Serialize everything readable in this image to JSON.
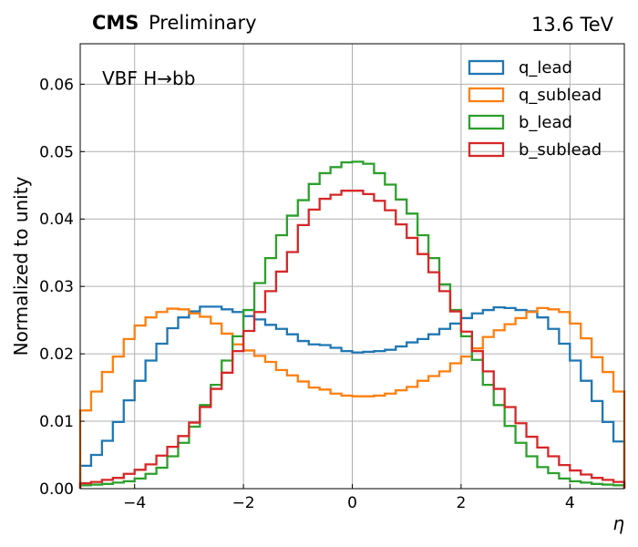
{
  "header": {
    "experiment": "CMS",
    "status": "Preliminary",
    "energy": "13.6 TeV"
  },
  "chart_data": {
    "type": "line",
    "step": true,
    "annotation": "VBF H→bb",
    "xlabel": "η",
    "ylabel": "Normalized to unity",
    "xlim": [
      -5,
      5
    ],
    "ylim": [
      0,
      0.066
    ],
    "x_ticks": [
      -4,
      -2,
      0,
      2,
      4
    ],
    "x_tick_labels": [
      "−4",
      "−2",
      "0",
      "2",
      "4"
    ],
    "y_ticks": [
      0.0,
      0.01,
      0.02,
      0.03,
      0.04,
      0.05,
      0.06
    ],
    "y_tick_labels": [
      "0.00",
      "0.01",
      "0.02",
      "0.03",
      "0.04",
      "0.05",
      "0.06"
    ],
    "grid": true,
    "legend_position": "top-right",
    "bin_edges_range": [
      -5,
      5
    ],
    "n_bins": 50,
    "series": [
      {
        "name": "q_lead",
        "color": "#1f77b4",
        "values": [
          0.0034,
          0.005,
          0.0071,
          0.0099,
          0.0131,
          0.016,
          0.019,
          0.0215,
          0.0238,
          0.0254,
          0.0263,
          0.027,
          0.027,
          0.0266,
          0.0262,
          0.0256,
          0.0251,
          0.0243,
          0.0237,
          0.0229,
          0.0219,
          0.0214,
          0.0213,
          0.0209,
          0.0204,
          0.0202,
          0.0203,
          0.0204,
          0.0206,
          0.0211,
          0.0217,
          0.0222,
          0.0229,
          0.0237,
          0.0245,
          0.0253,
          0.026,
          0.0265,
          0.0269,
          0.0268,
          0.0265,
          0.0263,
          0.0254,
          0.0237,
          0.0215,
          0.019,
          0.016,
          0.013,
          0.0099,
          0.007
        ]
      },
      {
        "name": "q_sublead",
        "color": "#ff7f0e",
        "values": [
          0.0116,
          0.0144,
          0.0173,
          0.0196,
          0.0222,
          0.0242,
          0.0254,
          0.0262,
          0.0267,
          0.0266,
          0.026,
          0.0255,
          0.0245,
          0.023,
          0.0214,
          0.0205,
          0.0197,
          0.0188,
          0.0176,
          0.0168,
          0.0159,
          0.015,
          0.0147,
          0.0141,
          0.0138,
          0.0137,
          0.0137,
          0.0138,
          0.0141,
          0.0146,
          0.0151,
          0.016,
          0.0167,
          0.0174,
          0.0186,
          0.0196,
          0.0208,
          0.0225,
          0.0235,
          0.0244,
          0.0253,
          0.0262,
          0.0268,
          0.0266,
          0.0262,
          0.0245,
          0.0223,
          0.0195,
          0.0173,
          0.0144
        ]
      },
      {
        "name": "b_lead",
        "color": "#2ca02c",
        "values": [
          0.0005,
          0.0006,
          0.0007,
          0.0009,
          0.0011,
          0.0015,
          0.0022,
          0.0031,
          0.0048,
          0.0068,
          0.0092,
          0.0124,
          0.0154,
          0.019,
          0.0226,
          0.0265,
          0.0305,
          0.0342,
          0.0376,
          0.0405,
          0.0428,
          0.0452,
          0.0468,
          0.0477,
          0.0484,
          0.0485,
          0.0482,
          0.0468,
          0.0451,
          0.0429,
          0.0408,
          0.0376,
          0.0342,
          0.0303,
          0.0265,
          0.0226,
          0.0191,
          0.0154,
          0.0124,
          0.0093,
          0.0068,
          0.0048,
          0.0032,
          0.0023,
          0.0015,
          0.0011,
          0.0009,
          0.0007,
          0.0006,
          0.0005
        ]
      },
      {
        "name": "b_sublead",
        "color": "#d62728",
        "values": [
          0.0008,
          0.001,
          0.0013,
          0.0016,
          0.0022,
          0.0028,
          0.0036,
          0.0049,
          0.0062,
          0.0078,
          0.0098,
          0.0121,
          0.0148,
          0.0172,
          0.0204,
          0.0234,
          0.0262,
          0.0293,
          0.0322,
          0.0351,
          0.0391,
          0.0414,
          0.043,
          0.0436,
          0.0442,
          0.0442,
          0.0437,
          0.0427,
          0.0413,
          0.0392,
          0.0372,
          0.0348,
          0.0321,
          0.0293,
          0.0263,
          0.0233,
          0.0204,
          0.0174,
          0.0148,
          0.0121,
          0.0097,
          0.0077,
          0.0061,
          0.0048,
          0.0035,
          0.0027,
          0.0021,
          0.0016,
          0.0013,
          0.001
        ]
      }
    ]
  }
}
